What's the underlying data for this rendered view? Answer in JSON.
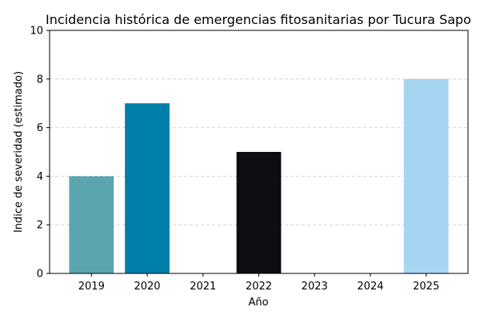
{
  "chart_data": {
    "type": "bar",
    "title": "Incidencia histórica de emergencias fitosanitarias por Tucura Sapo",
    "xlabel": "Año",
    "ylabel": "Indice de severidad (estimado)",
    "categories": [
      "2019",
      "2020",
      "2021",
      "2022",
      "2023",
      "2024",
      "2025"
    ],
    "values": [
      4,
      7,
      0,
      5,
      0,
      0,
      8
    ],
    "colors": [
      "#5ba5b0",
      "#007fa8",
      "#5ba5b0",
      "#0d0d12",
      "#5ba5b0",
      "#5ba5b0",
      "#a6d5f1"
    ],
    "ylim": [
      0,
      10
    ],
    "yticks": [
      "0",
      "2",
      "4",
      "6",
      "8",
      "10"
    ],
    "grid": "y, dashed",
    "grid_color": "#cccccc"
  }
}
